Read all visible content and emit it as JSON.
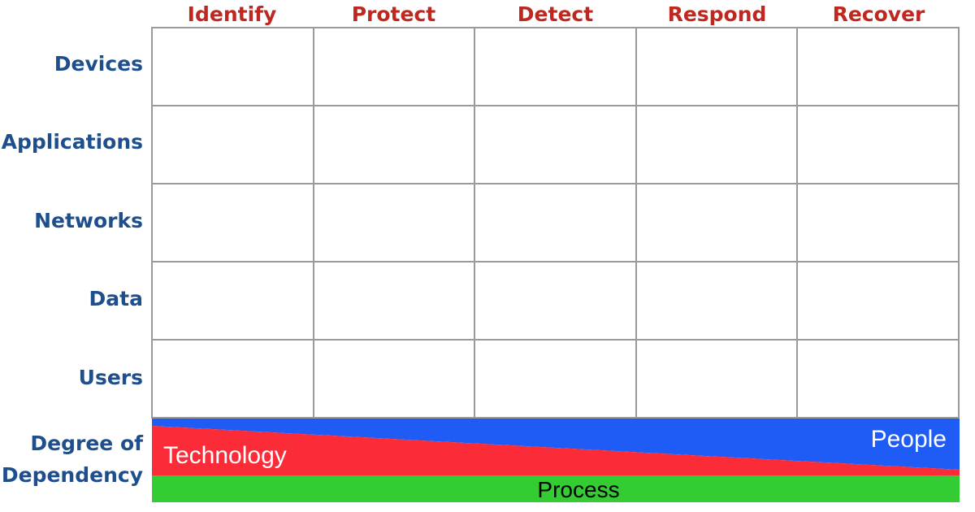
{
  "columns": [
    "Identify",
    "Protect",
    "Detect",
    "Respond",
    "Recover"
  ],
  "rows": [
    "Devices",
    "Applications",
    "Networks",
    "Data",
    "Users"
  ],
  "dependency": {
    "label_line1": "Degree of",
    "label_line2": "Dependency",
    "technology": "Technology",
    "people": "People",
    "process": "Process"
  },
  "colors": {
    "header_columns": "#c0271f",
    "header_rows": "#1f4e8c",
    "grid_line": "#9a9a9a",
    "people_band": "#1f5bf5",
    "technology_band": "#fb2b38",
    "process_band": "#33cc33"
  }
}
